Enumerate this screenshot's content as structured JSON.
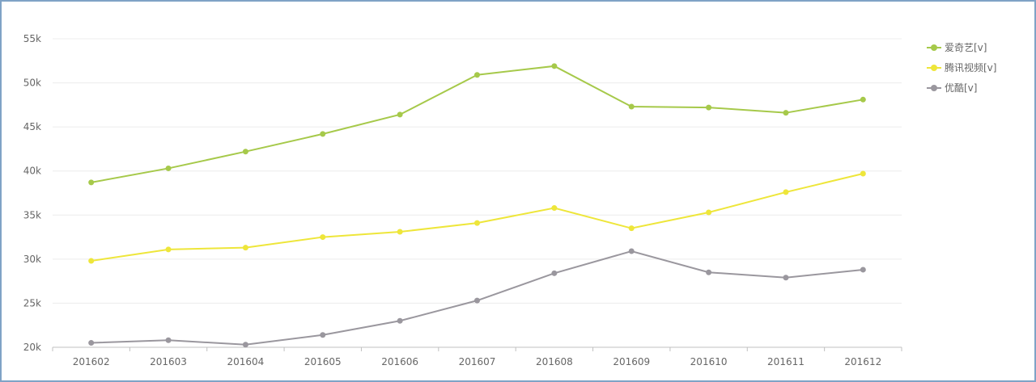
{
  "chart_data": {
    "type": "line",
    "categories": [
      "201602",
      "201603",
      "201604",
      "201605",
      "201606",
      "201607",
      "201608",
      "201609",
      "201610",
      "201611",
      "201612"
    ],
    "y_ticks": [
      "20k",
      "25k",
      "30k",
      "35k",
      "40k",
      "45k",
      "50k",
      "55k"
    ],
    "ylim": [
      20000,
      55000
    ],
    "grid": true,
    "legend_position": "top-right",
    "series": [
      {
        "name": "爱奇艺[v]",
        "color": "#a6c94a",
        "values": [
          38700,
          40300,
          42200,
          44200,
          46400,
          50900,
          51900,
          47300,
          47200,
          46600,
          48100
        ]
      },
      {
        "name": "腾讯视频[v]",
        "color": "#eee63a",
        "values": [
          29800,
          31100,
          31300,
          32500,
          33100,
          34100,
          35800,
          33500,
          35300,
          37600,
          39700
        ]
      },
      {
        "name": "优酷[v]",
        "color": "#9a979e",
        "values": [
          20500,
          20800,
          20300,
          21400,
          23000,
          25300,
          28400,
          30900,
          28500,
          27900,
          28800
        ]
      }
    ]
  }
}
